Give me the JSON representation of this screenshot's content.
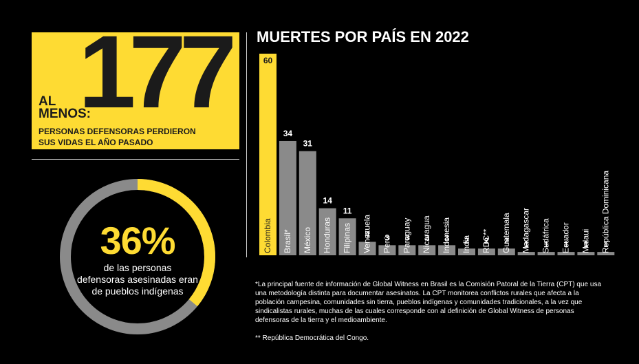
{
  "stat": {
    "number": "177",
    "prefix_line1": "AL",
    "prefix_line2": "MENOS:",
    "caption_line1": "PERSONAS DEFENSORAS PERDIERON",
    "caption_line2": "SUS VIDAS EL AÑO PASADO"
  },
  "donut": {
    "percent_text": "36%",
    "fraction": 0.36,
    "text_line1": "de las personas",
    "text_line2": "defensoras asesinadas eran",
    "text_line3": "de pueblos indígenas",
    "accent_color": "#fedb33",
    "track_color": "#8a8a8a"
  },
  "chart_data": {
    "type": "bar",
    "title": "MUERTES POR PAÍS EN 2022",
    "categories": [
      "Colombia",
      "Brasil*",
      "México",
      "Honduras",
      "Filipinas",
      "Venezuela",
      "Perú",
      "Paraguay",
      "Nicaragua",
      "Indonesia",
      "India",
      "RDC**",
      "Guatemala",
      "Madagascar",
      "Sudáfrica",
      "Ecuador",
      "Malaui",
      "República Dominicana"
    ],
    "values": [
      60,
      34,
      31,
      14,
      11,
      4,
      3,
      3,
      3,
      3,
      2,
      2,
      2,
      1,
      1,
      1,
      1,
      1
    ],
    "ylim": [
      0,
      60
    ],
    "highlight_color": "#fedb33",
    "bar_color": "#8a8a8a",
    "grid": false
  },
  "notes": {
    "note1": "*La principal fuente de información de Global Witness en Brasil es la Comisión Patoral de la Tierra (CPT) que usa una metodología distinta para documentar asesinatos. La CPT monitorea conflictos rurales que afecta a la población campesina, comunidades sin tierra, pueblos indígenas y comunidades tradicionales, a la vez que sindicalistas rurales, muchas de las cuales corresponde con al definición de Global Witness de personas defensoras de la tierra y el medioambiente.",
    "note2": "** República Democrática del Congo."
  }
}
